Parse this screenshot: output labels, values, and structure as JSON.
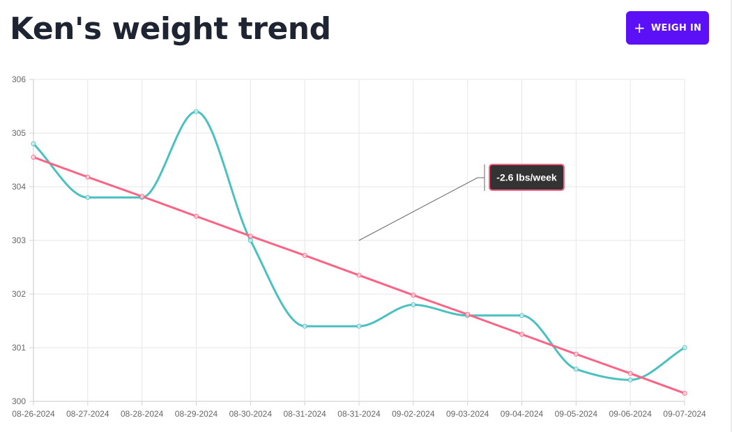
{
  "header": {
    "title": "Ken's weight trend",
    "weigh_in_label": "WEIGH IN",
    "weigh_in_icon": "+",
    "weigh_in_color": "#5b10f5"
  },
  "chart_data": {
    "type": "line",
    "categories": [
      "08-26-2024",
      "08-27-2024",
      "08-28-2024",
      "08-29-2024",
      "08-30-2024",
      "08-31-2024",
      "08-31-2024",
      "09-02-2024",
      "09-03-2024",
      "09-04-2024",
      "09-05-2024",
      "09-06-2024",
      "09-07-2024"
    ],
    "ylim": [
      300,
      306
    ],
    "yticks": [
      300,
      301,
      302,
      303,
      304,
      305,
      306
    ],
    "grid": true,
    "legend": "none",
    "series": [
      {
        "color": "#4bc0c0",
        "smooth": true,
        "values": [
          304.8,
          303.8,
          303.8,
          305.4,
          303.0,
          301.4,
          301.4,
          301.8,
          301.6,
          301.6,
          300.6,
          300.4,
          301.0
        ]
      },
      {
        "color": "#ff6384",
        "smooth": false,
        "values": [
          304.55,
          304.18,
          303.82,
          303.45,
          303.08,
          302.72,
          302.35,
          301.98,
          301.62,
          301.25,
          300.88,
          300.52,
          300.15
        ]
      }
    ],
    "annotation": {
      "text": "-2.6 lbs/week",
      "anchor_index": 6,
      "anchor_value": 303.0,
      "border_color": "#ff6384",
      "background": "#333333"
    }
  }
}
